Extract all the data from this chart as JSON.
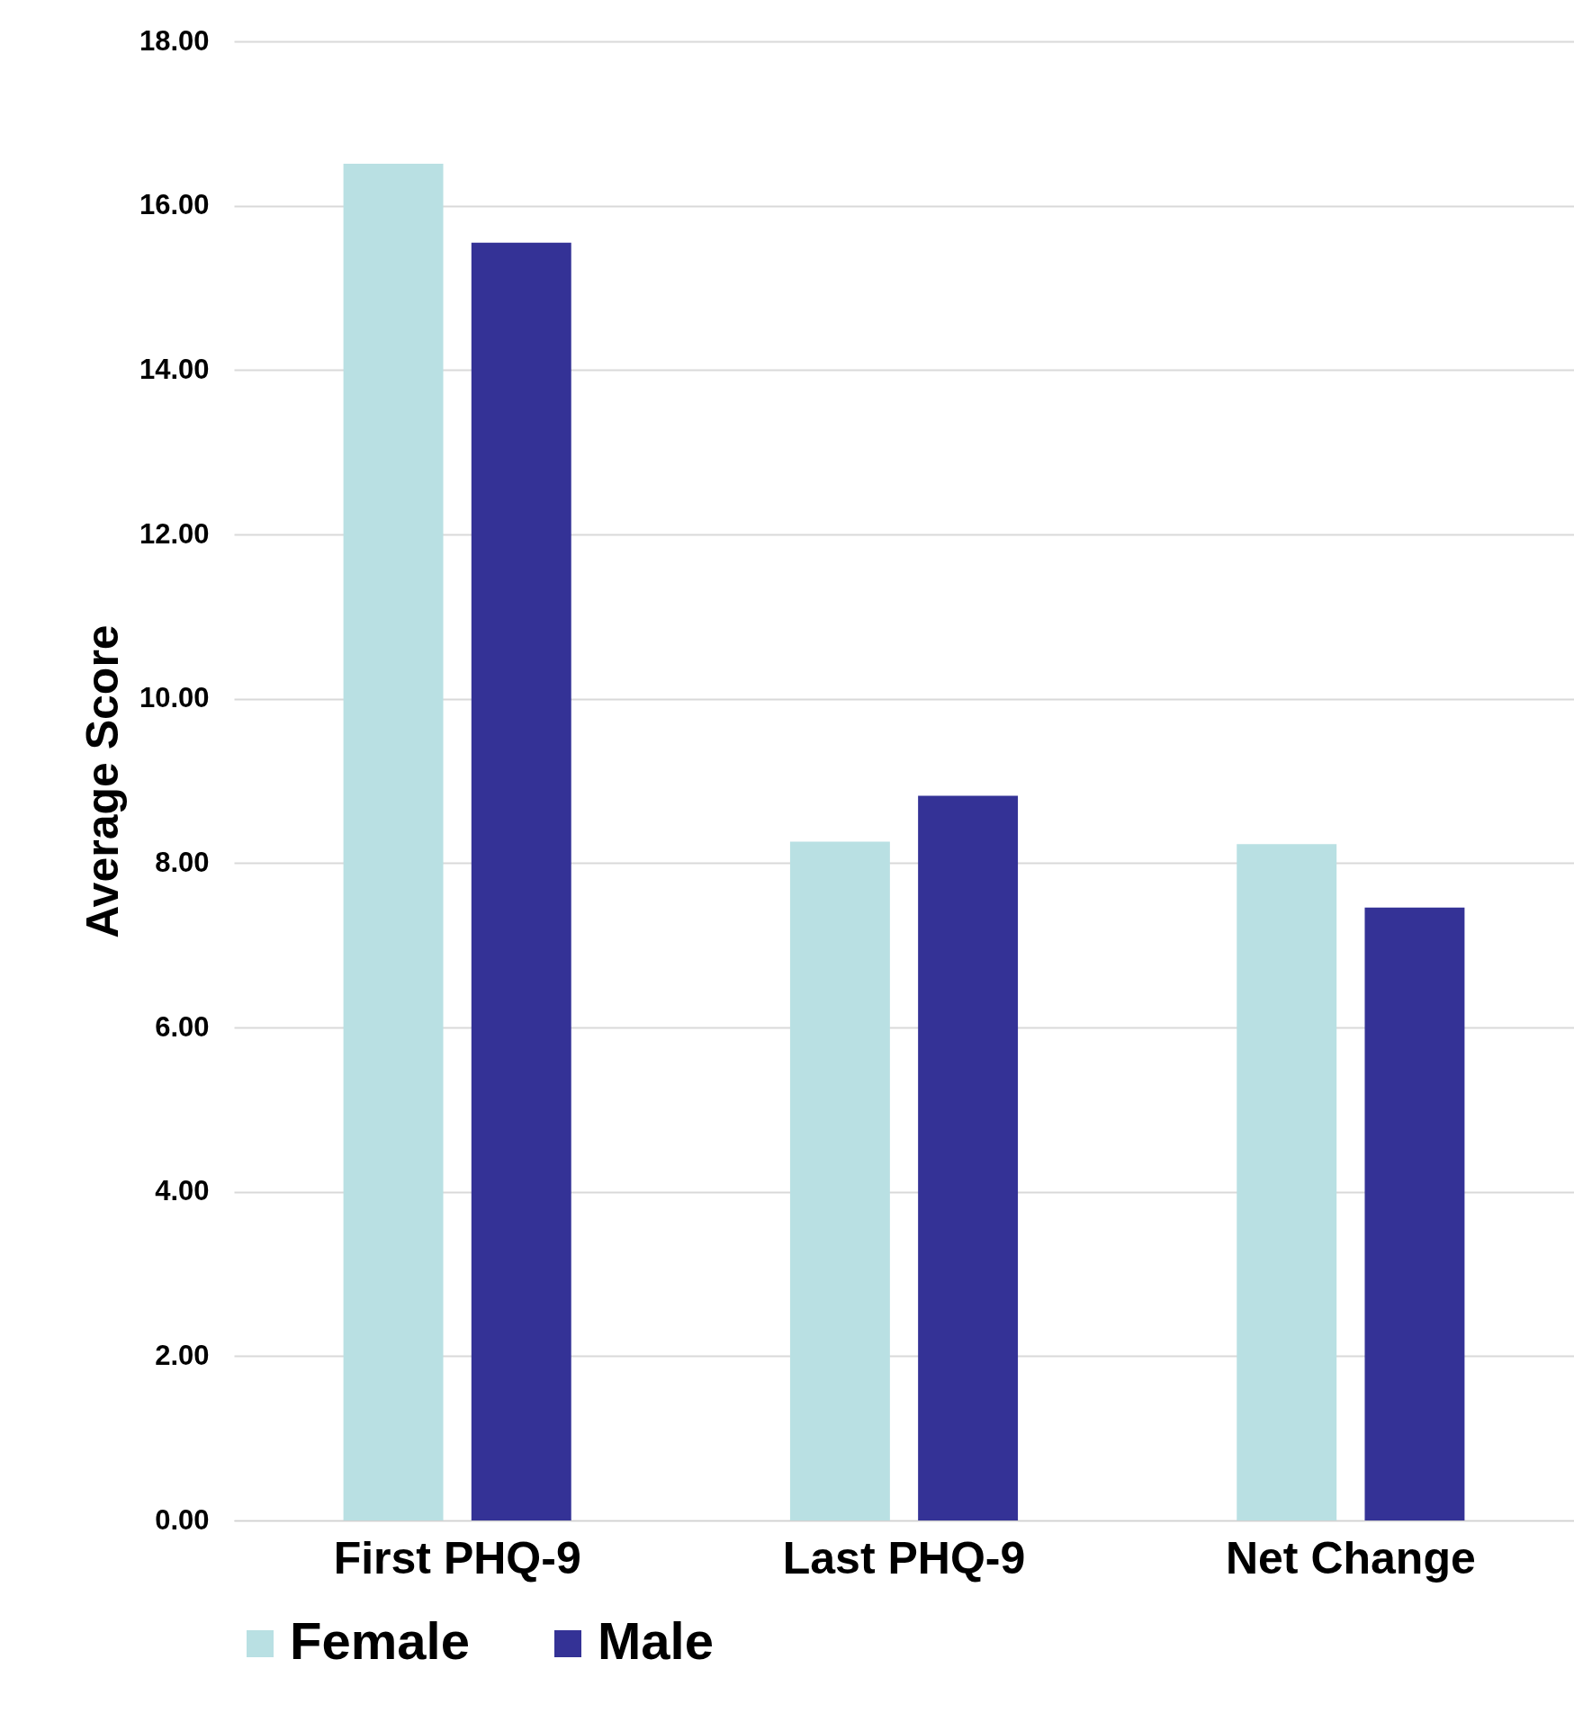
{
  "chart_data": {
    "type": "bar",
    "ylabel": "Average Score",
    "categories": [
      "First PHQ-9",
      "Last PHQ-9",
      "Net Change"
    ],
    "series": [
      {
        "name": "Female",
        "color": "#b9e0e3",
        "values": [
          16.51,
          8.26,
          8.23
        ]
      },
      {
        "name": "Male",
        "color": "#343296",
        "values": [
          15.55,
          8.82,
          7.46
        ]
      }
    ],
    "ylim": [
      0,
      18
    ],
    "yticks": [
      {
        "value": 0,
        "label": "0.00"
      },
      {
        "value": 2,
        "label": "2.00"
      },
      {
        "value": 4,
        "label": "4.00"
      },
      {
        "value": 6,
        "label": "6.00"
      },
      {
        "value": 8,
        "label": "8.00"
      },
      {
        "value": 10,
        "label": "10.00"
      },
      {
        "value": 12,
        "label": "12.00"
      },
      {
        "value": 14,
        "label": "14.00"
      },
      {
        "value": 16,
        "label": "16.00"
      },
      {
        "value": 18,
        "label": "18.00"
      }
    ],
    "grid": "y",
    "legend": "bottom"
  }
}
